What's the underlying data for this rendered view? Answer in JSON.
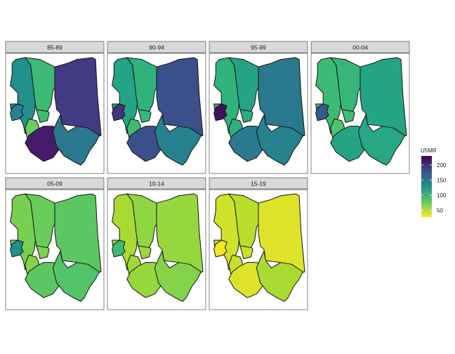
{
  "chart_data": {
    "type": "choropleth",
    "region_count": 8,
    "colorbar": {
      "title": "U5MR",
      "ticks": [
        50,
        100,
        150,
        200
      ],
      "range": [
        28,
        230
      ],
      "palette": "viridis (reversed: yellow = low, purple = high)"
    },
    "panels": [
      {
        "label": "85-89",
        "values": [
          128,
          140,
          75,
          90,
          92,
          195,
          215,
          150
        ]
      },
      {
        "label": "90-94",
        "values": [
          112,
          200,
          92,
          95,
          100,
          180,
          180,
          140
        ]
      },
      {
        "label": "95-99",
        "values": [
          100,
          222,
          102,
          105,
          112,
          148,
          148,
          140
        ]
      },
      {
        "label": "00-04",
        "values": [
          92,
          175,
          85,
          90,
          95,
          112,
          112,
          110
        ]
      },
      {
        "label": "05-09",
        "values": [
          70,
          130,
          66,
          68,
          75,
          80,
          80,
          84
        ]
      },
      {
        "label": "10-14",
        "values": [
          55,
          92,
          58,
          58,
          62,
          60,
          60,
          66
        ]
      },
      {
        "label": "15-19",
        "values": [
          42,
          30,
          46,
          44,
          50,
          38,
          38,
          54
        ]
      }
    ]
  }
}
